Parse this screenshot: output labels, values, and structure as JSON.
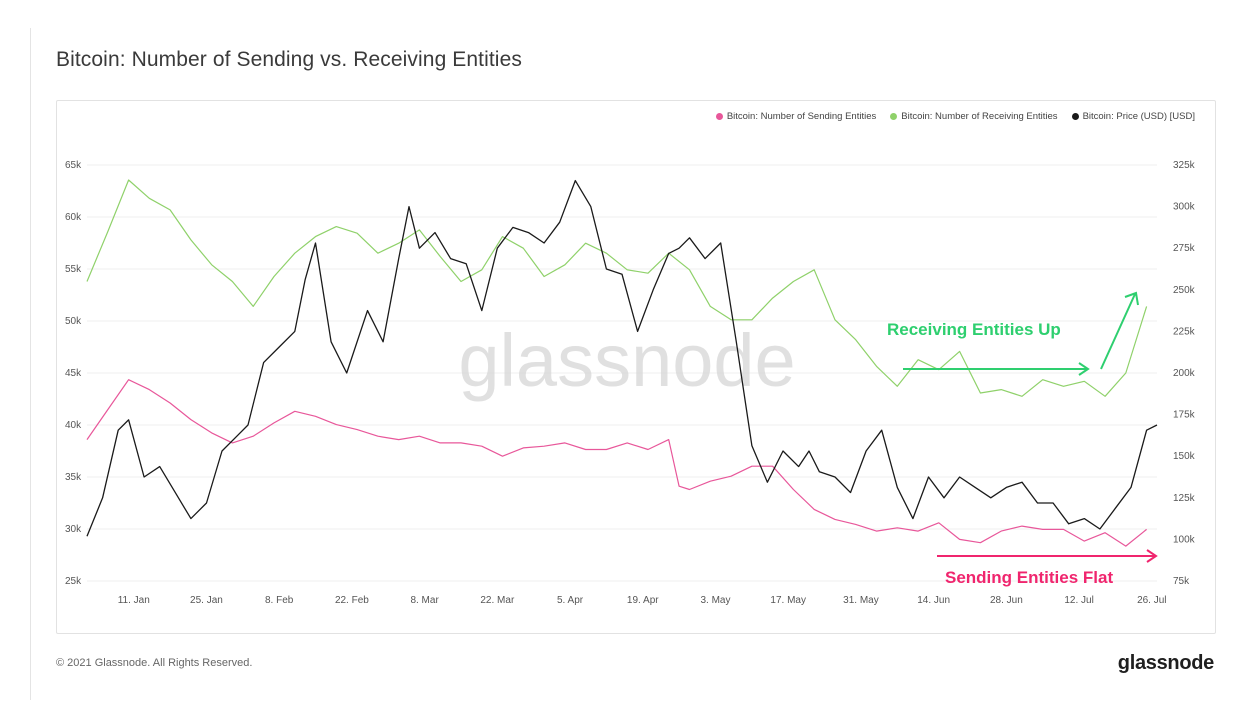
{
  "title": "Bitcoin: Number of Sending vs. Receiving Entities",
  "footer": {
    "copyright": "© 2021 Glassnode. All Rights Reserved.",
    "logo": "glassnode"
  },
  "watermark": "glassnode",
  "annotations": {
    "receiving": "Receiving Entities Up",
    "sending": "Sending Entities Flat"
  },
  "colors": {
    "sending": "#e8579a",
    "receiving": "#8fd16a",
    "price": "#1a1a1a",
    "annotation_green": "#2ecf6f",
    "annotation_pink": "#f0256e"
  },
  "chart_data": {
    "type": "line",
    "title": "Bitcoin: Number of Sending vs. Receiving Entities",
    "x_tick_labels": [
      "11. Jan",
      "25. Jan",
      "8. Feb",
      "22. Feb",
      "8. Mar",
      "22. Mar",
      "5. Apr",
      "19. Apr",
      "3. May",
      "17. May",
      "31. May",
      "14. Jun",
      "28. Jun",
      "12. Jul",
      "26. Jul"
    ],
    "left_axis": {
      "ylim": [
        25000,
        65000
      ],
      "ticks": [
        "25k",
        "30k",
        "35k",
        "40k",
        "45k",
        "50k",
        "55k",
        "60k",
        "65k"
      ]
    },
    "right_axis": {
      "ylim": [
        75000,
        325000
      ],
      "ticks": [
        "75k",
        "100k",
        "125k",
        "150k",
        "175k",
        "200k",
        "225k",
        "250k",
        "275k",
        "300k",
        "325k"
      ]
    },
    "legend": {
      "placement": "top-right"
    },
    "x_domain": [
      2,
      208
    ],
    "series": [
      {
        "name": "Bitcoin: Number of Sending Entities",
        "axis": "right",
        "color": "#e8579a",
        "x": [
          2,
          6,
          10,
          14,
          18,
          22,
          26,
          30,
          34,
          38,
          42,
          46,
          50,
          54,
          58,
          62,
          66,
          70,
          74,
          78,
          82,
          86,
          90,
          94,
          98,
          102,
          106,
          110,
          114,
          116,
          118,
          122,
          126,
          130,
          134,
          138,
          142,
          146,
          150,
          154,
          158,
          162,
          166,
          170,
          174,
          178,
          182,
          186,
          190,
          194,
          198,
          202,
          206
        ],
        "values": [
          160000,
          178000,
          196000,
          190000,
          182000,
          172000,
          164000,
          158000,
          162000,
          170000,
          177000,
          174000,
          169000,
          166000,
          162000,
          160000,
          162000,
          158000,
          158000,
          156000,
          150000,
          155000,
          156000,
          158000,
          154000,
          154000,
          158000,
          154000,
          160000,
          132000,
          130000,
          135000,
          138000,
          144000,
          144000,
          130000,
          118000,
          112000,
          109000,
          105000,
          107000,
          105000,
          110000,
          100000,
          98000,
          105000,
          108000,
          106000,
          106000,
          99000,
          104000,
          96000,
          106000
        ]
      },
      {
        "name": "Bitcoin: Number of Receiving Entities",
        "axis": "right",
        "color": "#8fd16a",
        "x": [
          2,
          6,
          10,
          14,
          18,
          22,
          26,
          30,
          34,
          38,
          42,
          46,
          50,
          54,
          58,
          62,
          66,
          70,
          74,
          78,
          82,
          86,
          90,
          94,
          98,
          102,
          106,
          110,
          114,
          118,
          122,
          126,
          130,
          134,
          138,
          142,
          146,
          150,
          154,
          158,
          162,
          166,
          170,
          174,
          178,
          182,
          186,
          190,
          194,
          198,
          202,
          206
        ],
        "values": [
          255000,
          285000,
          316000,
          305000,
          298000,
          280000,
          265000,
          255000,
          240000,
          258000,
          272000,
          282000,
          288000,
          284000,
          272000,
          278000,
          286000,
          270000,
          255000,
          262000,
          282000,
          275000,
          258000,
          265000,
          278000,
          272000,
          262000,
          260000,
          272000,
          262000,
          240000,
          232000,
          232000,
          245000,
          255000,
          262000,
          232000,
          220000,
          204000,
          192000,
          208000,
          202000,
          213000,
          188000,
          190000,
          186000,
          196000,
          192000,
          195000,
          186000,
          200000,
          240000
        ]
      },
      {
        "name": "Bitcoin: Price (USD) [USD]",
        "axis": "left",
        "color": "#1a1a1a",
        "x": [
          2,
          5,
          8,
          10,
          13,
          16,
          19,
          22,
          25,
          28,
          31,
          33,
          36,
          39,
          42,
          44,
          46,
          49,
          52,
          56,
          59,
          62,
          64,
          66,
          69,
          72,
          75,
          78,
          81,
          84,
          87,
          90,
          93,
          96,
          99,
          102,
          105,
          108,
          111,
          114,
          116,
          118,
          121,
          124,
          127,
          130,
          133,
          136,
          139,
          141,
          143,
          146,
          149,
          152,
          155,
          158,
          161,
          164,
          167,
          170,
          173,
          176,
          179,
          182,
          185,
          188,
          191,
          194,
          197,
          200,
          203,
          206,
          208
        ],
        "values": [
          29300,
          33000,
          39500,
          40500,
          35000,
          36000,
          33500,
          31000,
          32500,
          37500,
          39000,
          40000,
          46000,
          47500,
          49000,
          54000,
          57500,
          48000,
          45000,
          51000,
          48000,
          56000,
          61000,
          57000,
          58500,
          56000,
          55500,
          51000,
          57000,
          59000,
          58500,
          57500,
          59500,
          63500,
          61000,
          55000,
          54500,
          49000,
          53000,
          56500,
          57000,
          58000,
          56000,
          57500,
          48000,
          38000,
          34500,
          37500,
          36000,
          37500,
          35500,
          35000,
          33500,
          37500,
          39500,
          34000,
          31000,
          35000,
          33000,
          35000,
          34000,
          33000,
          34000,
          34500,
          32500,
          32500,
          30500,
          31000,
          30000,
          32000,
          34000,
          39500,
          40000
        ]
      }
    ]
  }
}
